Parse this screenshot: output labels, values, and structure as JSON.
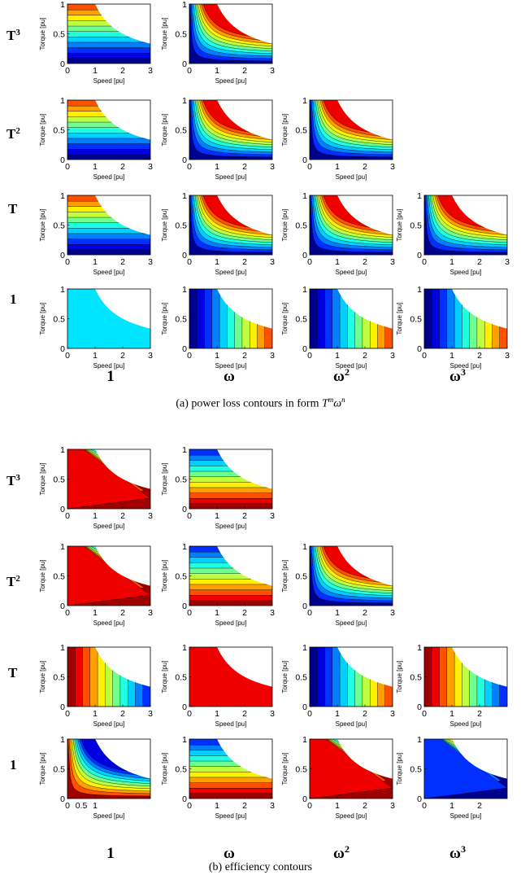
{
  "figure": {
    "row_labels": [
      "T",
      "T",
      "T",
      "1"
    ],
    "row_label_sups": [
      "3",
      "2",
      "",
      ""
    ],
    "col_labels": [
      "1",
      "ω",
      "ω",
      "ω"
    ],
    "col_label_sups": [
      "",
      "",
      "2",
      "3"
    ],
    "caption_a_prefix": "(a) power loss contours in form ",
    "caption_a_T": "T",
    "caption_a_m": "m",
    "caption_a_w": "ω",
    "caption_a_n": "n",
    "caption_b": "(b) efficiency contours",
    "xlabel": "Speed  [pu]",
    "ylabel": "Torque  [pu]"
  },
  "colors": {
    "jet": [
      "#00008f",
      "#0000df",
      "#002fff",
      "#007fff",
      "#00cfff",
      "#20ffdf",
      "#70ff8f",
      "#bfff3f",
      "#ffef00",
      "#ff9f00",
      "#ff5000",
      "#ef0000",
      "#9f0000"
    ],
    "uniform_fill": "#00e5ff"
  },
  "chart_data": [
    {
      "section": "a",
      "type": "heatmap",
      "row": 0,
      "col": 0,
      "level_a": 0.55,
      "level_b": 0.2,
      "level_c": 0.2,
      "xlim": [
        0,
        3
      ],
      "ylim": [
        0,
        1
      ],
      "xticks": [
        "0",
        "1",
        "2",
        "3"
      ],
      "yticks": [
        "0",
        "0.5",
        "1"
      ],
      "torque_limit": "T = 1/ω for ω > 1"
    },
    {
      "section": "a",
      "type": "heatmap",
      "row": 0,
      "col": 1,
      "level_a": 0.55,
      "level_b": 0.2,
      "level_c": 0.2,
      "xlim": [
        0,
        3
      ],
      "ylim": [
        0,
        1
      ],
      "xticks": [
        "0",
        "1",
        "2",
        "3"
      ],
      "yticks": [
        "0",
        "0.5",
        "1"
      ],
      "torque_limit": "T = 1/ω for ω > 1"
    },
    {
      "section": "a",
      "type": "heatmap",
      "row": 1,
      "col": 0,
      "level_a": 0.55,
      "level_b": 0.2,
      "level_c": 0.2,
      "xlim": [
        0,
        3
      ],
      "ylim": [
        0,
        1
      ],
      "xticks": [
        "0",
        "1",
        "2",
        "3"
      ],
      "yticks": [
        "0",
        "0.5",
        "1"
      ],
      "torque_limit": "T = 1/ω for ω > 1"
    },
    {
      "section": "a",
      "type": "heatmap",
      "row": 1,
      "col": 1,
      "level_a": 0.55,
      "level_b": 0.2,
      "level_c": 0.2,
      "xlim": [
        0,
        3
      ],
      "ylim": [
        0,
        1
      ],
      "xticks": [
        "0",
        "1",
        "2",
        "3"
      ],
      "yticks": [
        "0",
        "0.5",
        "1"
      ],
      "torque_limit": "T = 1/ω for ω > 1"
    },
    {
      "section": "a",
      "type": "heatmap",
      "row": 1,
      "col": 2,
      "level_a": 0.55,
      "level_b": 0.2,
      "level_c": 0.2,
      "xlim": [
        0,
        3
      ],
      "ylim": [
        0,
        1
      ],
      "xticks": [
        "0",
        "1",
        "2",
        "3"
      ],
      "yticks": [
        "0",
        "0.5",
        "1"
      ],
      "torque_limit": "T = 1/ω for ω > 1"
    },
    {
      "section": "a",
      "type": "heatmap",
      "row": 2,
      "col": 0,
      "level_a": 0.55,
      "level_b": 0.2,
      "level_c": 0.2,
      "xlim": [
        0,
        3
      ],
      "ylim": [
        0,
        1
      ],
      "xticks": [
        "0",
        "1",
        "2",
        "3"
      ],
      "yticks": [
        "0",
        "0.5",
        "1"
      ],
      "torque_limit": "T = 1/ω for ω > 1"
    },
    {
      "section": "a",
      "type": "heatmap",
      "row": 2,
      "col": 1,
      "level_a": 0.55,
      "level_b": 0.2,
      "level_c": 0.2,
      "xlim": [
        0,
        3
      ],
      "ylim": [
        0,
        1
      ],
      "xticks": [
        "0",
        "1",
        "2",
        "3"
      ],
      "yticks": [
        "0",
        "0.5",
        "1"
      ],
      "torque_limit": "T = 1/ω for ω > 1"
    },
    {
      "section": "a",
      "type": "heatmap",
      "row": 2,
      "col": 2,
      "level_a": 0.55,
      "level_b": 0.2,
      "level_c": 0.2,
      "xlim": [
        0,
        3
      ],
      "ylim": [
        0,
        1
      ],
      "xticks": [
        "0",
        "1",
        "2",
        "3"
      ],
      "yticks": [
        "0",
        "0.5",
        "1"
      ],
      "torque_limit": "T = 1/ω for ω > 1"
    },
    {
      "section": "a",
      "type": "heatmap",
      "row": 2,
      "col": 3,
      "level_a": 0.55,
      "level_b": 0.2,
      "level_c": 0.2,
      "xlim": [
        0,
        3
      ],
      "ylim": [
        0,
        1
      ],
      "xticks": [
        "0",
        "1",
        "2",
        "3"
      ],
      "yticks": [
        "0",
        "0.5",
        "1"
      ],
      "torque_limit": "T = 1/ω for ω > 1"
    },
    {
      "section": "a",
      "type": "heatmap",
      "row": 3,
      "col": 0,
      "uniform": true,
      "xlim": [
        0,
        3
      ],
      "ylim": [
        0,
        1
      ],
      "xticks": [
        "0",
        "1",
        "2",
        "3"
      ],
      "yticks": [
        "0",
        "0.5",
        "1"
      ]
    },
    {
      "section": "a",
      "type": "heatmap",
      "row": 3,
      "col": 1,
      "level_a": 0.55,
      "level_b": 0.2,
      "level_c": 0.2,
      "xlim": [
        0,
        3
      ],
      "ylim": [
        0,
        1
      ],
      "xticks": [
        "0",
        "1",
        "2",
        "3"
      ],
      "yticks": [
        "0",
        "0.5",
        "1"
      ],
      "torque_limit": "T = 1/ω for ω > 1"
    },
    {
      "section": "a",
      "type": "heatmap",
      "row": 3,
      "col": 2,
      "level_a": 0.55,
      "level_b": 0.2,
      "level_c": 0.2,
      "xlim": [
        0,
        3
      ],
      "ylim": [
        0,
        1
      ],
      "xticks": [
        "0",
        "1",
        "2",
        "3"
      ],
      "yticks": [
        "0",
        "0.5",
        "1"
      ],
      "torque_limit": "T = 1/ω for ω > 1"
    },
    {
      "section": "a",
      "type": "heatmap",
      "row": 3,
      "col": 3,
      "level_a": 0.55,
      "level_b": 0.2,
      "level_c": 0.2,
      "xlim": [
        0,
        3
      ],
      "ylim": [
        0,
        1
      ],
      "xticks": [
        "0",
        "1",
        "2",
        "3"
      ],
      "yticks": [
        "0",
        "0.5",
        "1"
      ],
      "torque_limit": "T = 1/ω for ω > 1"
    },
    {
      "section": "b",
      "type": "heatmap",
      "row": 0,
      "col": 0,
      "level_a": 0.55,
      "level_b": 0.2,
      "level_c": 0.2,
      "xlim": [
        0,
        3
      ],
      "ylim": [
        0,
        1
      ],
      "xticks": [
        "0",
        "1",
        "2",
        "3"
      ],
      "yticks": [
        "0",
        "0.5",
        "1"
      ],
      "torque_limit": "T = 1/ω for ω > 1"
    },
    {
      "section": "b",
      "type": "heatmap",
      "row": 0,
      "col": 1,
      "level_a": 0.55,
      "level_b": 0.2,
      "level_c": 0.2,
      "xlim": [
        0,
        3
      ],
      "ylim": [
        0,
        1
      ],
      "xticks": [
        "0",
        "1",
        "2",
        "3"
      ],
      "yticks": [
        "0",
        "0.5",
        "1"
      ],
      "torque_limit": "T = 1/ω for ω > 1"
    },
    {
      "section": "b",
      "type": "heatmap",
      "row": 1,
      "col": 0,
      "level_a": 0.55,
      "level_b": 0.2,
      "level_c": 0.2,
      "xlim": [
        0,
        3
      ],
      "ylim": [
        0,
        1
      ],
      "xticks": [
        "0",
        "1",
        "2",
        "3"
      ],
      "yticks": [
        "0",
        "0.5",
        "1"
      ],
      "torque_limit": "T = 1/ω for ω > 1"
    },
    {
      "section": "b",
      "type": "heatmap",
      "row": 1,
      "col": 1,
      "level_a": 0.55,
      "level_b": 0.2,
      "level_c": 0.2,
      "xlim": [
        0,
        3
      ],
      "ylim": [
        0,
        1
      ],
      "xticks": [
        "0",
        "1",
        "2",
        "3"
      ],
      "yticks": [
        "0",
        "0.5",
        "1"
      ],
      "torque_limit": "T = 1/ω for ω > 1"
    },
    {
      "section": "b",
      "type": "heatmap",
      "row": 1,
      "col": 2,
      "level_a": 0.55,
      "level_b": 0.2,
      "level_c": 0.2,
      "xlim": [
        0,
        3
      ],
      "ylim": [
        0,
        1
      ],
      "xticks": [
        "0",
        "1",
        "2",
        "3"
      ],
      "yticks": [
        "0",
        "0.5",
        "1"
      ],
      "torque_limit": "T = 1/ω for ω > 1"
    },
    {
      "section": "b",
      "type": "heatmap",
      "row": 2,
      "col": 0,
      "level_a": 0.55,
      "level_b": 0.2,
      "level_c": 0.2,
      "xlim": [
        0,
        3
      ],
      "ylim": [
        0,
        1
      ],
      "xticks": [
        "0",
        "1",
        "2",
        "3"
      ],
      "yticks": [
        "0",
        "0.5",
        "1"
      ],
      "torque_limit": "T = 1/ω for ω > 1"
    },
    {
      "section": "b",
      "type": "heatmap",
      "row": 2,
      "col": 1,
      "level_a": 0.55,
      "level_b": 0.2,
      "level_c": 0.2,
      "xlim": [
        0,
        3
      ],
      "ylim": [
        0,
        1
      ],
      "xticks": [
        "0",
        "1",
        "2",
        "3"
      ],
      "yticks": [
        "0",
        "0.5",
        "1"
      ],
      "torque_limit": "T = 1/ω for ω > 1"
    },
    {
      "section": "b",
      "type": "heatmap",
      "row": 2,
      "col": 2,
      "level_a": 0.55,
      "level_b": 0.2,
      "level_c": 0.2,
      "xlim": [
        0,
        3
      ],
      "ylim": [
        0,
        1
      ],
      "xticks": [
        "0",
        "1",
        "2",
        "3"
      ],
      "yticks": [
        "0",
        "0.5",
        "1"
      ],
      "torque_limit": "T = 1/ω for ω > 1"
    },
    {
      "section": "b",
      "type": "heatmap",
      "row": 2,
      "col": 3,
      "level_a": 0.55,
      "level_b": 0.2,
      "level_c": 0.2,
      "xlim": [
        0,
        3
      ],
      "ylim": [
        0,
        1
      ],
      "xticks": [
        "0",
        "1",
        "2"
      ],
      "yticks": [
        "0",
        "0.5",
        "1"
      ],
      "torque_limit": "T = 1/ω for ω > 1"
    },
    {
      "section": "b",
      "type": "heatmap",
      "row": 3,
      "col": 0,
      "level_a": 0.55,
      "level_b": 0.2,
      "level_c": 0.2,
      "xlim": [
        0,
        3
      ],
      "ylim": [
        0,
        1
      ],
      "xticks": [
        "0",
        "0.5",
        "1"
      ],
      "yticks": [
        "0",
        "0.5",
        "1"
      ],
      "torque_limit": "T = 1/ω for ω > 1"
    },
    {
      "section": "b",
      "type": "heatmap",
      "row": 3,
      "col": 1,
      "level_a": 0.55,
      "level_b": 0.2,
      "level_c": 0.2,
      "xlim": [
        0,
        3
      ],
      "ylim": [
        0,
        1
      ],
      "xticks": [
        "0",
        "1",
        "2",
        "3"
      ],
      "yticks": [
        "0",
        "0.5",
        "1"
      ],
      "torque_limit": "T = 1/ω for ω > 1"
    },
    {
      "section": "b",
      "type": "heatmap",
      "row": 3,
      "col": 2,
      "level_a": 0.55,
      "level_b": 0.2,
      "level_c": 0.2,
      "xlim": [
        0,
        3
      ],
      "ylim": [
        0,
        1
      ],
      "xticks": [
        "0",
        "1",
        "2",
        "3"
      ],
      "yticks": [
        "0",
        "0.5",
        "1"
      ],
      "torque_limit": "T = 1/ω for ω > 1"
    },
    {
      "section": "b",
      "type": "heatmap",
      "row": 3,
      "col": 3,
      "level_a": 0.55,
      "level_b": 0.2,
      "level_c": 0.2,
      "xlim": [
        0,
        3
      ],
      "ylim": [
        0,
        1
      ],
      "xticks": [
        "0",
        "1",
        "2"
      ],
      "yticks": [
        "0",
        "0.5",
        "1"
      ],
      "torque_limit": "T = 1/ω for ω > 1"
    }
  ]
}
